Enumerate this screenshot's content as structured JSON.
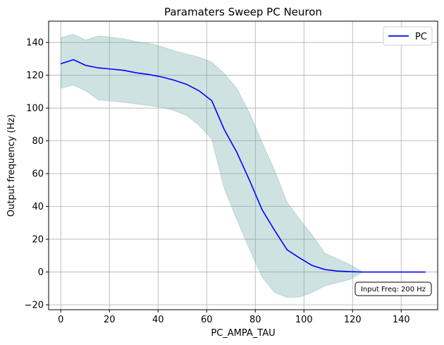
{
  "chart_data": {
    "type": "line",
    "title": "Paramaters Sweep PC Neuron",
    "xlabel": "PC_AMPA_TAU",
    "ylabel": "Output frequency (Hz)",
    "xlim": [
      -5,
      155
    ],
    "ylim": [
      -23,
      153
    ],
    "xticks": [
      0,
      20,
      40,
      60,
      80,
      100,
      120,
      140
    ],
    "yticks": [
      -20,
      0,
      20,
      40,
      60,
      80,
      100,
      120,
      140
    ],
    "grid": true,
    "legend": {
      "position": "top-right",
      "entries": [
        "PC"
      ]
    },
    "annotation": "Input Freq: 200 Hz",
    "colors": {
      "line": "#0000ff",
      "band": "#5f9ea0",
      "grid": "#b0b0b0"
    },
    "series": [
      {
        "name": "PC",
        "x": [
          0,
          5.2,
          10.3,
          15.5,
          20.7,
          25.9,
          31,
          36.2,
          41.4,
          46.6,
          51.7,
          56.9,
          62.1,
          67.2,
          72.4,
          77.6,
          82.8,
          87.9,
          93.1,
          98.3,
          103.4,
          108.6,
          113.8,
          119,
          124.1,
          129.3,
          134.5,
          139.7,
          144.8,
          150
        ],
        "y": [
          127,
          129.5,
          126,
          124.5,
          123.8,
          123,
          121.5,
          120.5,
          119,
          117,
          114.5,
          110.5,
          104.5,
          87,
          73,
          56,
          38,
          25.5,
          13.5,
          8.5,
          4,
          1.5,
          0.6,
          0.2,
          0,
          0,
          0,
          0,
          0,
          0
        ],
        "y_upper": [
          143,
          145,
          141.5,
          144,
          143.2,
          142.2,
          140.5,
          139.5,
          137.5,
          135,
          133,
          131,
          128,
          121,
          112,
          97,
          79,
          62,
          42.5,
          32,
          22.5,
          11.5,
          8,
          4.5,
          0.1,
          0,
          0,
          0,
          0,
          0
        ],
        "y_lower": [
          112,
          114,
          110.5,
          105,
          104.2,
          103.5,
          102.5,
          101.5,
          100.5,
          98.5,
          95.5,
          89.5,
          81,
          51,
          32,
          14,
          -3,
          -12.5,
          -15.5,
          -15.2,
          -12.5,
          -8.5,
          -6.5,
          -4.5,
          -0.1,
          0,
          0,
          0,
          0,
          0
        ]
      }
    ]
  }
}
